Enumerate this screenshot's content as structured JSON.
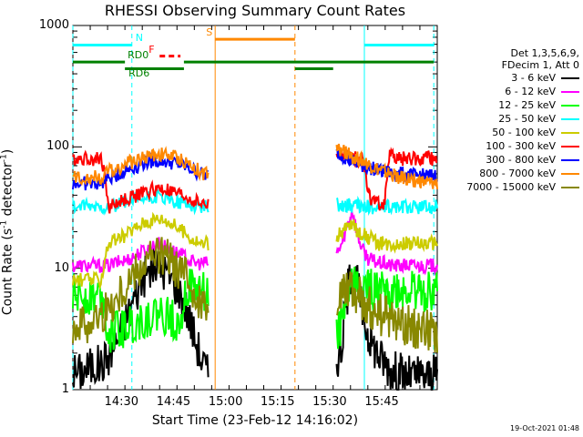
{
  "chart_data": {
    "type": "line",
    "title": "RHESSI Observing Summary Count Rates",
    "xlabel": "Start Time (23-Feb-12 14:16:02)",
    "ylabel_main": "Count Rate (s",
    "ylabel_sup1": "-1",
    "ylabel_mid": " detector",
    "ylabel_sup2": "-1",
    "ylabel_end": ")",
    "yscale": "log",
    "ylim": [
      1,
      1000
    ],
    "xlim": [
      0,
      105
    ],
    "y_ticks": [
      "1",
      "10",
      "100",
      "1000"
    ],
    "x_ticks": [
      {
        "label": "14:30",
        "min": 14
      },
      {
        "label": "14:45",
        "min": 29
      },
      {
        "label": "15:00",
        "min": 44
      },
      {
        "label": "15:15",
        "min": 59
      },
      {
        "label": "15:30",
        "min": 74
      },
      {
        "label": "15:45",
        "min": 89
      }
    ],
    "legend_header": [
      "Det 1,3,5,6,9,",
      "FDecim 1, Att 0"
    ],
    "series": [
      {
        "name": "3 - 6 keV",
        "color": "#000000",
        "pre": [
          1.4,
          1.4,
          1.5,
          1.6,
          1.6,
          1.9,
          2.4,
          3.2,
          4.5,
          6.5,
          8.5,
          9.8,
          10.5,
          9.5,
          8.0,
          6.5,
          4.5,
          2.8,
          1.8,
          1.3
        ],
        "post": [
          1.8,
          2.2,
          6,
          11,
          7,
          4,
          2.8,
          2.3,
          1.9,
          1.7,
          1.5,
          1.4,
          1.4,
          1.3,
          1.3,
          1.3,
          1.3,
          1.3,
          1.3,
          1.3
        ]
      },
      {
        "name": "6 - 12 keV",
        "color": "#ff00ff",
        "pre": [
          10.5,
          10.5,
          10.5,
          10.5,
          10.5,
          10.5,
          11,
          11.5,
          12,
          13,
          14,
          15,
          16,
          15,
          14,
          13,
          12,
          11,
          11,
          11
        ],
        "post": [
          13,
          16,
          22,
          30,
          18,
          14,
          12,
          11.5,
          11,
          11,
          10.5,
          10.5,
          10.5,
          10.5,
          10.5,
          10.5,
          10.5,
          10.5,
          10.5,
          10.5
        ]
      },
      {
        "name": "12 - 25 keV",
        "color": "#00ff00",
        "pre": [
          6,
          6,
          6,
          6,
          6,
          3,
          3,
          3.2,
          3.4,
          3.6,
          3.8,
          4,
          4.2,
          4,
          3.8,
          3.6,
          7,
          6.5,
          6.5,
          6
        ],
        "post": [
          3,
          3.5,
          6,
          8,
          7,
          7,
          7,
          6.5,
          6.5,
          6.5,
          6.5,
          6.5,
          6.5,
          6.5,
          6.5,
          6.5,
          6.5,
          6.5,
          6.5,
          6.5
        ]
      },
      {
        "name": "25 - 50 keV",
        "color": "#00ffff",
        "pre": [
          32,
          32,
          32,
          32,
          32,
          32,
          33,
          34,
          35,
          36,
          37,
          38,
          38,
          37,
          36,
          35,
          34,
          33,
          32,
          32
        ],
        "post": [
          33,
          33,
          33,
          33,
          33,
          32,
          32,
          32,
          32,
          32,
          32,
          32,
          32,
          32,
          32,
          32,
          32,
          32,
          32,
          32
        ]
      },
      {
        "name": "50 - 100 keV",
        "color": "#cccc00",
        "pre": [
          8,
          8,
          8,
          8,
          8,
          16,
          17,
          18,
          20,
          22,
          24,
          25,
          26,
          25,
          23,
          21,
          19,
          17,
          16,
          16
        ],
        "post": [
          18,
          20,
          22,
          23,
          20,
          19,
          18,
          17,
          16,
          16,
          16,
          16,
          16,
          16,
          16,
          16,
          16,
          16,
          16,
          16
        ]
      },
      {
        "name": "100 - 300 keV",
        "color": "#ff0000",
        "pre": [
          80,
          80,
          80,
          80,
          80,
          32,
          34,
          36,
          38,
          40,
          42,
          44,
          45,
          44,
          42,
          40,
          38,
          36,
          34,
          33
        ],
        "post": [
          90,
          88,
          85,
          82,
          80,
          80,
          40,
          36,
          34,
          33,
          85,
          82,
          80,
          80,
          80,
          80,
          80,
          80,
          80,
          80
        ]
      },
      {
        "name": "300 - 800 keV",
        "color": "#0000ff",
        "pre": [
          50,
          50,
          50,
          50,
          50,
          55,
          58,
          62,
          66,
          70,
          74,
          76,
          77,
          76,
          74,
          72,
          68,
          64,
          60,
          58
        ],
        "post": [
          90,
          86,
          80,
          76,
          72,
          70,
          68,
          66,
          64,
          62,
          62,
          60,
          60,
          58,
          58,
          58,
          58,
          58,
          58,
          58
        ]
      },
      {
        "name": "800 - 7000 keV",
        "color": "#ff8800",
        "pre": [
          56,
          56,
          56,
          56,
          57,
          62,
          66,
          70,
          74,
          78,
          82,
          86,
          88,
          87,
          84,
          80,
          74,
          68,
          62,
          58
        ],
        "post": [
          95,
          92,
          88,
          84,
          80,
          76,
          72,
          68,
          65,
          62,
          60,
          58,
          56,
          55,
          54,
          53,
          52,
          51,
          50,
          50
        ]
      },
      {
        "name": "7000 - 15000 keV",
        "color": "#888800",
        "pre": [
          3.5,
          3.5,
          3.6,
          3.8,
          4,
          4.5,
          5.5,
          6.5,
          8,
          9.5,
          11,
          12,
          12.5,
          12,
          11,
          9.5,
          8,
          6.5,
          5,
          4
        ],
        "post": [
          6,
          6.5,
          7,
          6.5,
          6,
          5.5,
          5,
          4.5,
          4.2,
          4,
          3.8,
          3.6,
          3.5,
          3.4,
          3.3,
          3.2,
          3.2,
          3.1,
          3,
          3
        ]
      }
    ],
    "pre_window": [
      0,
      39
    ],
    "post_window": [
      76,
      105
    ],
    "gap_window": [
      39,
      76
    ],
    "segments": [
      {
        "label": "N",
        "color": "#00ffff",
        "value": 690,
        "ranges": [
          [
            0,
            17
          ],
          [
            84,
            104
          ]
        ]
      },
      {
        "label": "RD0",
        "color": "#008000",
        "value": 500,
        "ranges": [
          [
            0,
            15
          ],
          [
            32,
            104
          ]
        ]
      },
      {
        "label": "RD6",
        "color": "#008000",
        "value": 440,
        "ranges": [
          [
            15,
            32
          ],
          [
            64,
            75
          ]
        ]
      },
      {
        "label": "S",
        "color": "#ff8800",
        "value": 770,
        "ranges": [
          [
            41,
            64
          ]
        ]
      },
      {
        "label": "F",
        "color": "#ff0000",
        "value": 560,
        "ranges": [
          [
            25,
            31
          ]
        ]
      }
    ],
    "vlines": [
      {
        "min": 0,
        "color": "#00ffff",
        "dash": true
      },
      {
        "min": 17,
        "color": "#00ffff",
        "dash": true
      },
      {
        "min": 41,
        "color": "#ff8800",
        "dash": false
      },
      {
        "min": 64,
        "color": "#ff8800",
        "dash": true
      },
      {
        "min": 84,
        "color": "#00ffff",
        "dash": false
      },
      {
        "min": 104,
        "color": "#00ffff",
        "dash": true
      }
    ]
  },
  "footer_date": "19-Oct-2021 01:48"
}
